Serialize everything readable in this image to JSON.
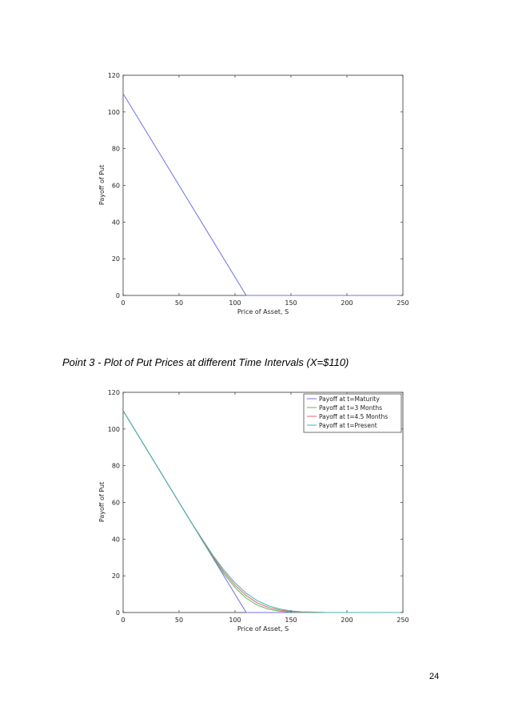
{
  "caption": "Point 3 - Plot of Put Prices at different Time Intervals (X=$110)",
  "page_number": "24",
  "chart_data": [
    {
      "type": "line",
      "title": "",
      "xlabel": "Price of Asset, S",
      "ylabel": "Payoff of Put",
      "xlim": [
        0,
        250
      ],
      "ylim": [
        0,
        120
      ],
      "xticks": [
        "0",
        "50",
        "100",
        "150",
        "200",
        "250"
      ],
      "yticks": [
        "0",
        "20",
        "40",
        "60",
        "80",
        "100",
        "120"
      ],
      "grid": false,
      "legend": null,
      "series": [
        {
          "color": "#7070e8",
          "points": [
            [
              0,
              110
            ],
            [
              110,
              0
            ],
            [
              250,
              0
            ]
          ]
        }
      ]
    },
    {
      "type": "line",
      "title": "",
      "xlabel": "Price of Asset, S",
      "ylabel": "Payoff of Put",
      "xlim": [
        0,
        250
      ],
      "ylim": [
        0,
        120
      ],
      "xticks": [
        "0",
        "50",
        "100",
        "150",
        "200",
        "250"
      ],
      "yticks": [
        "0",
        "20",
        "40",
        "60",
        "80",
        "100",
        "120"
      ],
      "grid": false,
      "legend": "top-right",
      "series": [
        {
          "name": "Payoff at t=Maturity",
          "color": "#7070e8",
          "points": [
            [
              0,
              110
            ],
            [
              110,
              0
            ],
            [
              250,
              0
            ]
          ]
        },
        {
          "name": "Payoff at t=3 Months",
          "color": "#5cb85c",
          "points": [
            [
              0,
              110
            ],
            [
              60,
              50
            ],
            [
              80,
              30.3
            ],
            [
              90,
              21.2
            ],
            [
              100,
              13.6
            ],
            [
              110,
              7.8
            ],
            [
              120,
              4.0
            ],
            [
              130,
              1.8
            ],
            [
              140,
              0.7
            ],
            [
              150,
              0.25
            ],
            [
              160,
              0.08
            ],
            [
              180,
              0
            ],
            [
              250,
              0
            ]
          ]
        },
        {
          "name": "Payoff at t=4.5 Months",
          "color": "#e06666",
          "points": [
            [
              0,
              110
            ],
            [
              60,
              50
            ],
            [
              80,
              30.8
            ],
            [
              90,
              22.2
            ],
            [
              100,
              14.9
            ],
            [
              110,
              9.2
            ],
            [
              120,
              5.2
            ],
            [
              130,
              2.7
            ],
            [
              140,
              1.3
            ],
            [
              150,
              0.55
            ],
            [
              160,
              0.2
            ],
            [
              180,
              0.02
            ],
            [
              250,
              0
            ]
          ]
        },
        {
          "name": "Payoff at t=Present",
          "color": "#45b5b5",
          "points": [
            [
              0,
              110
            ],
            [
              60,
              50
            ],
            [
              80,
              31.4
            ],
            [
              90,
              23.2
            ],
            [
              100,
              16.2
            ],
            [
              110,
              10.5
            ],
            [
              120,
              6.4
            ],
            [
              130,
              3.6
            ],
            [
              140,
              1.9
            ],
            [
              150,
              0.9
            ],
            [
              160,
              0.4
            ],
            [
              180,
              0.05
            ],
            [
              250,
              0
            ]
          ]
        }
      ]
    }
  ]
}
